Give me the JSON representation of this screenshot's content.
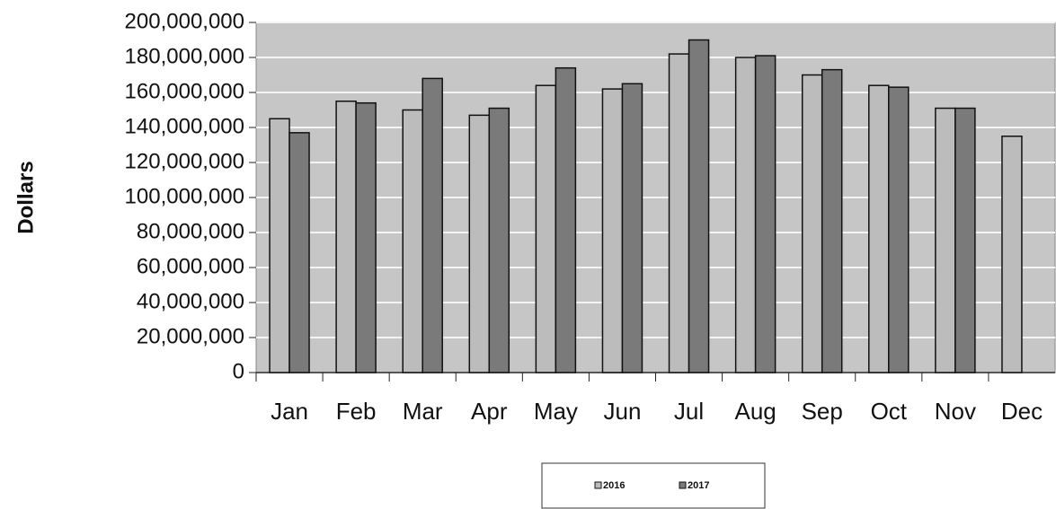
{
  "chart_data": {
    "type": "bar",
    "y_label": "Dollars",
    "categories": [
      "Jan",
      "Feb",
      "Mar",
      "Apr",
      "May",
      "Jun",
      "Jul",
      "Aug",
      "Sep",
      "Oct",
      "Nov",
      "Dec"
    ],
    "series": [
      {
        "name": "2016",
        "color": "#bcbcbc",
        "values": [
          145000000,
          155000000,
          150000000,
          147000000,
          164000000,
          162000000,
          182000000,
          180000000,
          170000000,
          164000000,
          151000000,
          135000000
        ]
      },
      {
        "name": "2017",
        "color": "#7a7a7a",
        "values": [
          137000000,
          154000000,
          168000000,
          151000000,
          174000000,
          165000000,
          190000000,
          181000000,
          173000000,
          163000000,
          151000000,
          null
        ]
      }
    ],
    "ylim": [
      0,
      200000000
    ],
    "yticks": [
      0,
      {
        "value": 20000000,
        "label": "20,000,000"
      },
      {
        "value": 40000000,
        "label": "40,000,000"
      },
      {
        "value": 60000000,
        "label": "60,000,000"
      },
      {
        "value": 80000000,
        "label": "80,000,000"
      },
      {
        "value": 100000000,
        "label": "100,000,000"
      },
      {
        "value": 120000000,
        "label": "120,000,000"
      },
      {
        "value": 140000000,
        "label": "140,000,000"
      },
      {
        "value": 160000000,
        "label": "160,000,000"
      },
      {
        "value": 180000000,
        "label": "180,000,000"
      },
      {
        "value": 200000000,
        "label": "200,000,000"
      }
    ],
    "grid": true,
    "legend": "bottom"
  }
}
